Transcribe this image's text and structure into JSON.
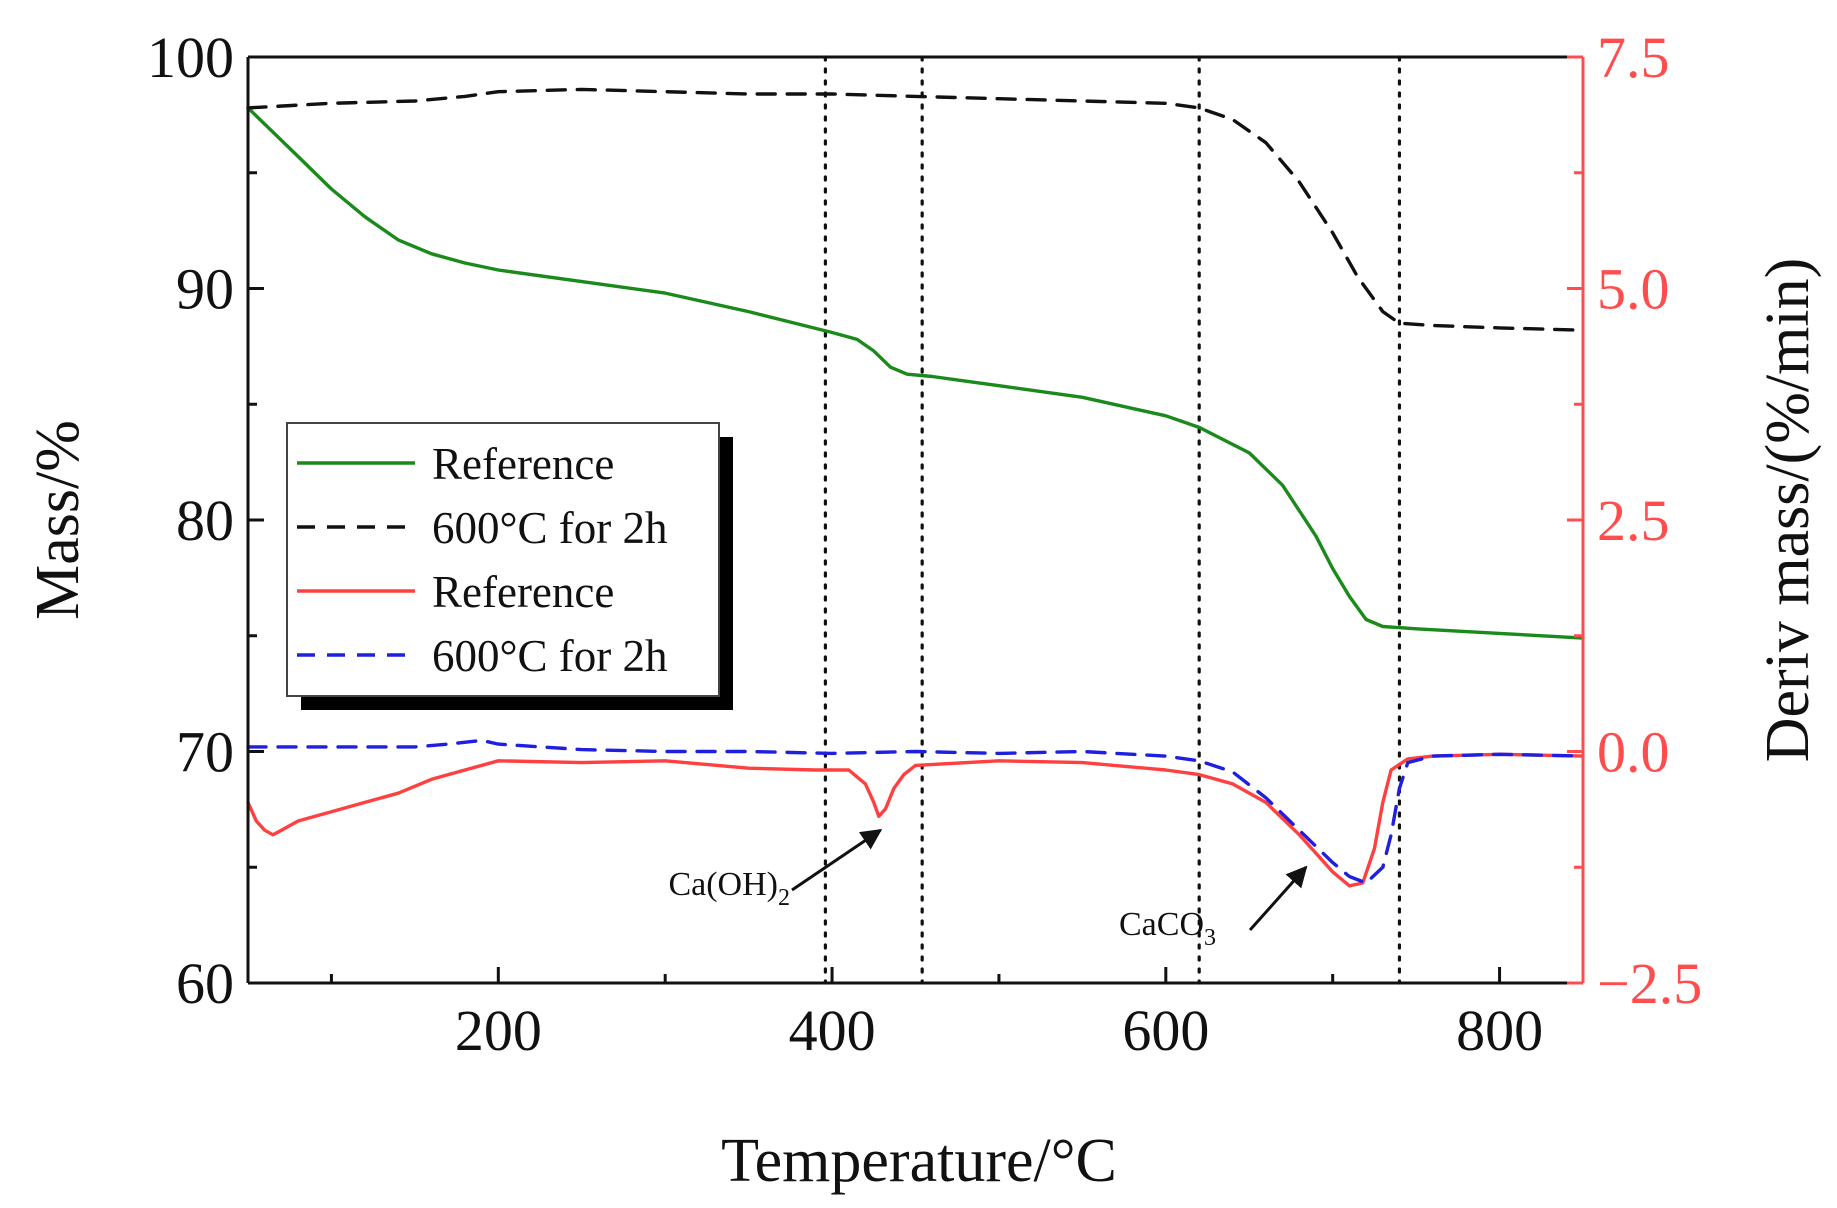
{
  "chart_data": {
    "type": "line",
    "title": "",
    "xlabel": "Temperature/°C",
    "ylabel_left": "Mass/%",
    "ylabel_right": "Deriv mass/(%/min)",
    "xlim": [
      50,
      850
    ],
    "ylim_left": [
      60,
      100
    ],
    "ylim_right": [
      -2.5,
      7.5
    ],
    "x_ticks": [
      200,
      400,
      600,
      800
    ],
    "x_minor_ticks": [
      100,
      300,
      500,
      700
    ],
    "y_left_ticks": [
      60,
      70,
      80,
      90,
      100
    ],
    "y_left_minor_ticks": [
      65,
      75,
      85,
      95
    ],
    "y_right_ticks": [
      -2.5,
      0.0,
      2.5,
      5.0,
      7.5
    ],
    "y_right_tick_labels": [
      "−2.5",
      "0.0",
      "2.5",
      "5.0",
      "7.5"
    ],
    "y_right_minor_ticks": [
      -1.25,
      1.25,
      3.75,
      6.25
    ],
    "grid": false,
    "vlines": [
      396,
      454,
      620,
      740
    ],
    "colors": {
      "green": "#1a8a1a",
      "black": "#111111",
      "red": "#ff4040",
      "blue": "#1f1fe0",
      "right_axis": "#ff4d4d"
    },
    "legend": {
      "position": "left-middle",
      "entries": [
        {
          "label": "Reference",
          "color": "#1a8a1a",
          "dash": "solid"
        },
        {
          "label": "600°C for 2h",
          "color": "#111111",
          "dash": "dashed"
        },
        {
          "label": "Reference",
          "color": "#ff4040",
          "dash": "solid"
        },
        {
          "label": "600°C for 2h",
          "color": "#1f1fe0",
          "dash": "dashed"
        }
      ]
    },
    "series": [
      {
        "name": "Reference (mass)",
        "axis": "left",
        "color": "#1a8a1a",
        "dash": "solid",
        "x": [
          50,
          60,
          80,
          100,
          120,
          140,
          160,
          180,
          200,
          250,
          300,
          350,
          400,
          415,
          425,
          435,
          445,
          460,
          500,
          550,
          600,
          620,
          650,
          670,
          690,
          700,
          710,
          720,
          730,
          750,
          800,
          850
        ],
        "y": [
          97.8,
          97.1,
          95.7,
          94.3,
          93.1,
          92.1,
          91.5,
          91.1,
          90.8,
          90.3,
          89.8,
          89.0,
          88.1,
          87.8,
          87.3,
          86.6,
          86.3,
          86.2,
          85.8,
          85.3,
          84.5,
          84.0,
          82.9,
          81.5,
          79.3,
          77.9,
          76.7,
          75.7,
          75.4,
          75.3,
          75.1,
          74.9
        ]
      },
      {
        "name": "600°C for 2h (mass)",
        "axis": "left",
        "color": "#111111",
        "dash": "dashed",
        "x": [
          50,
          100,
          150,
          180,
          200,
          250,
          300,
          350,
          400,
          450,
          500,
          550,
          600,
          620,
          640,
          660,
          680,
          700,
          715,
          730,
          740,
          760,
          800,
          850
        ],
        "y": [
          97.8,
          98.0,
          98.1,
          98.3,
          98.5,
          98.6,
          98.5,
          98.4,
          98.4,
          98.3,
          98.2,
          98.1,
          98.0,
          97.8,
          97.3,
          96.3,
          94.6,
          92.4,
          90.5,
          89.0,
          88.5,
          88.4,
          88.3,
          88.2
        ]
      },
      {
        "name": "Reference (deriv)",
        "axis": "right",
        "color": "#ff4040",
        "dash": "solid",
        "x": [
          50,
          55,
          60,
          65,
          70,
          80,
          100,
          120,
          140,
          160,
          180,
          200,
          250,
          300,
          350,
          390,
          410,
          420,
          425,
          428,
          432,
          437,
          443,
          450,
          500,
          550,
          600,
          620,
          640,
          660,
          680,
          700,
          710,
          718,
          725,
          730,
          735,
          745,
          760,
          800,
          850
        ],
        "y": [
          -0.55,
          -0.75,
          -0.85,
          -0.9,
          -0.85,
          -0.75,
          -0.65,
          -0.55,
          -0.45,
          -0.3,
          -0.2,
          -0.1,
          -0.12,
          -0.1,
          -0.18,
          -0.2,
          -0.2,
          -0.35,
          -0.55,
          -0.7,
          -0.62,
          -0.4,
          -0.25,
          -0.15,
          -0.1,
          -0.12,
          -0.2,
          -0.25,
          -0.35,
          -0.55,
          -0.9,
          -1.3,
          -1.45,
          -1.42,
          -1.05,
          -0.55,
          -0.2,
          -0.08,
          -0.05,
          -0.03,
          -0.05
        ]
      },
      {
        "name": "600°C for 2h (deriv)",
        "axis": "right",
        "color": "#1f1fe0",
        "dash": "dashed",
        "x": [
          50,
          100,
          150,
          170,
          190,
          200,
          250,
          300,
          350,
          400,
          450,
          500,
          550,
          600,
          620,
          640,
          660,
          680,
          700,
          710,
          720,
          730,
          735,
          740,
          745,
          760,
          800,
          850
        ],
        "y": [
          0.05,
          0.05,
          0.05,
          0.08,
          0.12,
          0.08,
          0.02,
          0.0,
          0.0,
          -0.02,
          0.0,
          -0.02,
          0.0,
          -0.05,
          -0.1,
          -0.22,
          -0.5,
          -0.85,
          -1.2,
          -1.35,
          -1.42,
          -1.25,
          -0.9,
          -0.4,
          -0.12,
          -0.05,
          -0.03,
          -0.05
        ]
      }
    ],
    "annotations": [
      {
        "base": "Ca(OH)",
        "sub": "2",
        "arrow_tail": [
          433,
          -1.7
        ],
        "arrow_head": [
          429,
          -0.85
        ]
      },
      {
        "base": "CaCO",
        "sub": "3",
        "arrow_tail": [
          662,
          -1.75
        ],
        "arrow_head": [
          684,
          -1.25
        ]
      }
    ]
  }
}
